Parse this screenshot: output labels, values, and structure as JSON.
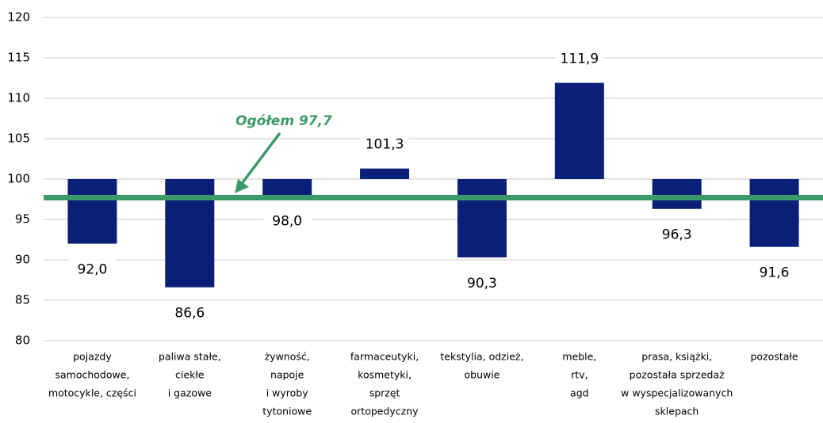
{
  "chart_data": {
    "type": "bar",
    "categories": [
      [
        "pojazdy",
        "samochodowe,",
        "motocykle, części"
      ],
      [
        "paliwa stałe,",
        "ciekłe",
        "i gazowe"
      ],
      [
        "żywność,",
        "napoje",
        "i wyroby",
        "tytoniowe"
      ],
      [
        "farmaceutyki,",
        "kosmetyki,",
        "sprzęt",
        "ortopedyczny"
      ],
      [
        "tekstylia, odzież,",
        "obuwie"
      ],
      [
        "meble,",
        "rtv,",
        "agd"
      ],
      [
        "prasa, książki,",
        "pozostała sprzedaż",
        "w wyspecjalizowanych",
        "sklepach"
      ],
      [
        "pozostałe"
      ]
    ],
    "values": [
      92.0,
      86.6,
      98.0,
      101.3,
      90.3,
      111.9,
      96.3,
      91.6
    ],
    "value_labels": [
      "92,0",
      "86,6",
      "98,0",
      "101,3",
      "90,3",
      "111,9",
      "96,3",
      "91,6"
    ],
    "baseline": 100,
    "color": "#0a1f78",
    "ylim": [
      80,
      120
    ],
    "yticks": [
      80,
      85,
      90,
      95,
      100,
      105,
      110,
      115,
      120
    ],
    "grid": true,
    "total": {
      "value": 97.7,
      "label": "Ogółem 97,7",
      "color": "#3a9a6a"
    }
  }
}
